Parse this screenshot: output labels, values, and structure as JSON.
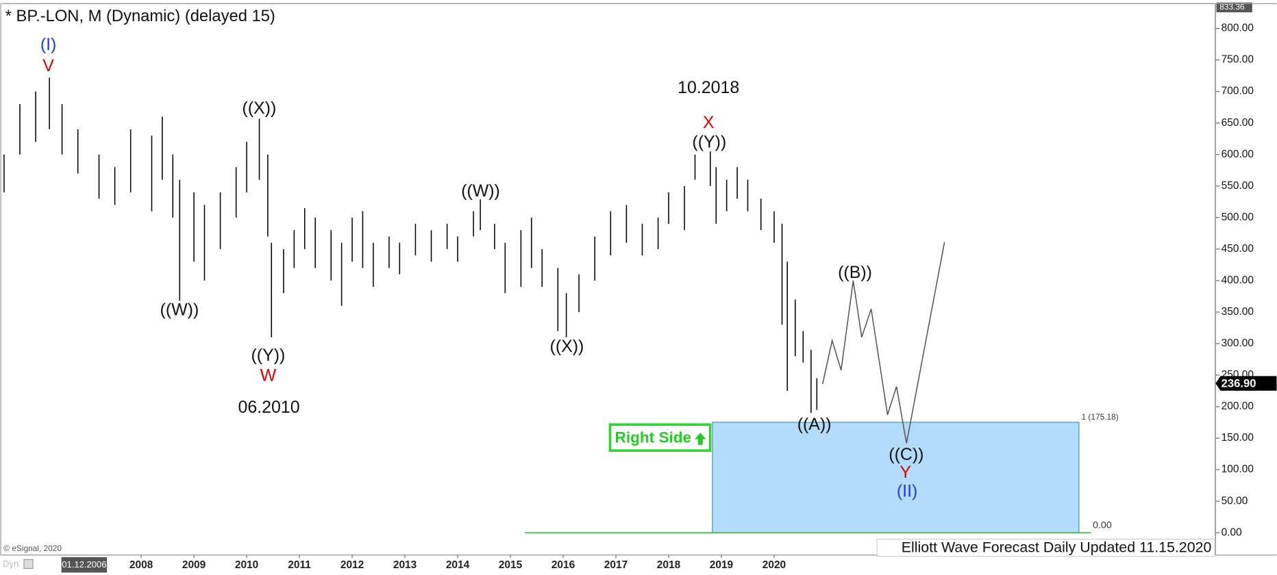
{
  "chart_data": {
    "type": "ohlc",
    "title": "* BP.-LON, M (Dynamic) (delayed 15)",
    "color": "#000000",
    "x": [
      2005.4,
      2005.7,
      2006.0,
      2006.26,
      2006.5,
      2006.8,
      2007.2,
      2007.5,
      2007.8,
      2008.2,
      2008.4,
      2008.6,
      2008.73,
      2009.0,
      2009.2,
      2009.5,
      2009.8,
      2010.0,
      2010.24,
      2010.4,
      2010.47,
      2010.7,
      2010.9,
      2011.1,
      2011.3,
      2011.6,
      2011.8,
      2012.0,
      2012.2,
      2012.4,
      2012.7,
      2012.9,
      2013.2,
      2013.5,
      2013.8,
      2014.0,
      2014.3,
      2014.43,
      2014.7,
      2014.9,
      2015.2,
      2015.4,
      2015.6,
      2015.9,
      2016.06,
      2016.3,
      2016.6,
      2016.9,
      2017.2,
      2017.5,
      2017.8,
      2018.0,
      2018.3,
      2018.5,
      2018.79,
      2018.9,
      2019.1,
      2019.3,
      2019.5,
      2019.75,
      2020.0,
      2020.15,
      2020.25,
      2020.4,
      2020.55,
      2020.7,
      2020.81
    ],
    "high": [
      600,
      680,
      700,
      722,
      680,
      640,
      600,
      580,
      640,
      630,
      660,
      600,
      560,
      540,
      520,
      540,
      580,
      620,
      657,
      600,
      460,
      450,
      480,
      515,
      500,
      480,
      460,
      500,
      510,
      460,
      470,
      460,
      490,
      480,
      490,
      470,
      510,
      529,
      490,
      460,
      480,
      500,
      450,
      420,
      380,
      410,
      470,
      510,
      520,
      490,
      500,
      540,
      550,
      600,
      605,
      580,
      560,
      580,
      560,
      530,
      510,
      490,
      430,
      370,
      320,
      290,
      245
    ],
    "low": [
      540,
      600,
      620,
      640,
      600,
      570,
      530,
      520,
      540,
      510,
      560,
      500,
      368,
      430,
      400,
      450,
      500,
      540,
      560,
      470,
      310,
      380,
      420,
      450,
      420,
      400,
      360,
      430,
      420,
      390,
      420,
      410,
      440,
      430,
      450,
      430,
      470,
      480,
      450,
      380,
      390,
      420,
      390,
      320,
      310,
      350,
      400,
      440,
      460,
      440,
      450,
      490,
      480,
      560,
      550,
      490,
      510,
      530,
      510,
      480,
      460,
      330,
      225,
      280,
      270,
      190,
      195
    ],
    "forecast": {
      "color": "#555555",
      "x": [
        2020.92,
        2021.1,
        2021.27,
        2021.5,
        2021.66,
        2021.84,
        2022.15,
        2022.32,
        2022.51,
        2023.23
      ],
      "y": [
        236,
        305,
        258,
        400,
        310,
        355,
        187,
        232,
        142,
        461
      ]
    },
    "target_zone": {
      "color": "#b3dcfa",
      "x": [
        2018.83,
        2025.78
      ],
      "y": [
        0,
        175.18
      ],
      "label": "1 (175.18)"
    },
    "baseline": {
      "color": "#3cb043",
      "x": [
        2015.27,
        2026.01
      ],
      "y": 0,
      "label": "0.00"
    },
    "xlim": [
      2005.33,
      2028.37
    ],
    "ylim": [
      -34.8,
      838.7
    ],
    "xticks": [
      2008,
      2009,
      2010,
      2011,
      2012,
      2013,
      2014,
      2015,
      2016,
      2017,
      2018,
      2019,
      2020
    ],
    "yticks": [
      {
        "value": 0,
        "label": "0.00"
      },
      {
        "value": 50,
        "label": "50.00"
      },
      {
        "value": 100,
        "label": "100.00"
      },
      {
        "value": 150,
        "label": "150.00"
      },
      {
        "value": 200,
        "label": "200.00"
      },
      {
        "value": 250,
        "label": "250.00"
      },
      {
        "value": 300,
        "label": "300.00"
      },
      {
        "value": 350,
        "label": "350.00"
      },
      {
        "value": 400,
        "label": "400.00"
      },
      {
        "value": 450,
        "label": "450.00"
      },
      {
        "value": 500,
        "label": "500.00"
      },
      {
        "value": 550,
        "label": "550.00"
      },
      {
        "value": 600,
        "label": "600.00"
      },
      {
        "value": 650,
        "label": "650.00"
      },
      {
        "value": 700,
        "label": "700.00"
      },
      {
        "value": 750,
        "label": "750.00"
      },
      {
        "value": 800,
        "label": "800.00"
      }
    ],
    "last_price": {
      "value": 236.9,
      "label": "236.90"
    },
    "top_price": {
      "value": 833.36,
      "label": "833.36"
    },
    "cursor_date": "01.12.2006",
    "annotations": [
      {
        "text": "(I)",
        "color": "#1a3fd0"
      },
      {
        "text": "V",
        "color": "#e00000"
      },
      {
        "text": "((W))",
        "color": "#111111"
      },
      {
        "text": "((X))",
        "color": "#111111"
      },
      {
        "text": "((Y))",
        "color": "#111111"
      },
      {
        "text": "W",
        "color": "#e00000"
      },
      {
        "text": "06.2010",
        "color": "#111111"
      },
      {
        "text": "((W))",
        "color": "#111111"
      },
      {
        "text": "((X))",
        "color": "#111111"
      },
      {
        "text": "10.2018",
        "color": "#111111"
      },
      {
        "text": "X",
        "color": "#e00000"
      },
      {
        "text": "((Y))",
        "color": "#111111"
      },
      {
        "text": "((B))",
        "color": "#111111"
      },
      {
        "text": "((A))",
        "color": "#111111"
      },
      {
        "text": "((C))",
        "color": "#111111"
      },
      {
        "text": "Y",
        "color": "#e00000"
      },
      {
        "text": "(II)",
        "color": "#1a3fd0"
      }
    ],
    "badge": "Right Side",
    "copyright": "© eSignal, 2020",
    "footer": "Elliott Wave Forecast Daily Updated 11.15.2020",
    "corner_label": "Dyn"
  }
}
